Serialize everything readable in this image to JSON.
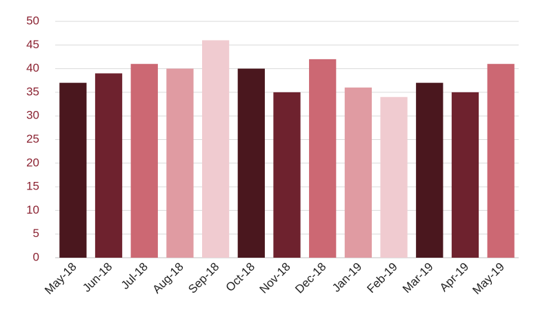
{
  "chart_data": {
    "type": "bar",
    "categories": [
      "May-18",
      "Jun-18",
      "Jul-18",
      "Aug-18",
      "Sep-18",
      "Oct-18",
      "Nov-18",
      "Dec-18",
      "Jan-19",
      "Feb-19",
      "Mar-19",
      "Apr-19",
      "May-19"
    ],
    "values": [
      37,
      39,
      41,
      40,
      46,
      40,
      35,
      42,
      36,
      34,
      37,
      35,
      41
    ],
    "colors": [
      "#4a171e",
      "#6e222e",
      "#cc6873",
      "#e09ba2",
      "#f0cbd0",
      "#4a171e",
      "#6e222e",
      "#cc6873",
      "#e09ba2",
      "#f0cbd0",
      "#4a171e",
      "#6e222e",
      "#cc6873"
    ],
    "ylim": [
      0,
      50
    ],
    "yticks": [
      0,
      5,
      10,
      15,
      20,
      25,
      30,
      35,
      40,
      45,
      50
    ],
    "grid": true
  }
}
